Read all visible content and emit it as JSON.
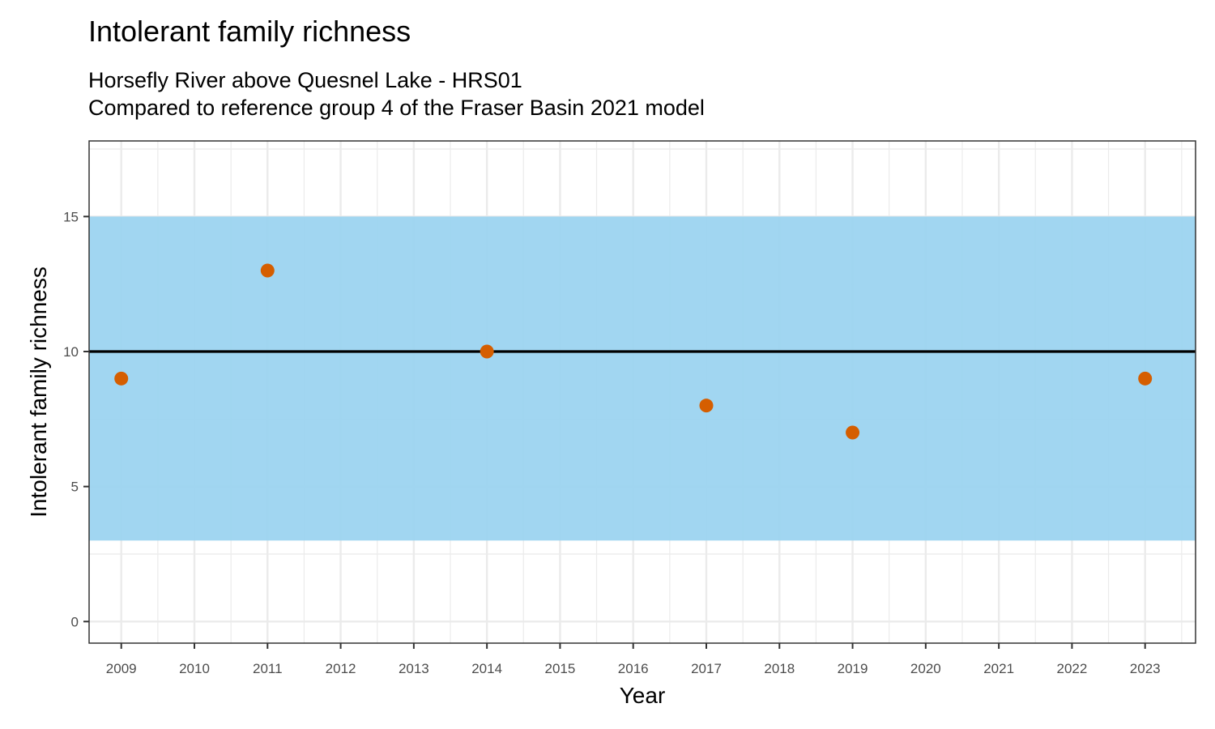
{
  "chart_data": {
    "type": "scatter",
    "title": "Intolerant family richness",
    "subtitle": [
      "Horsefly River above Quesnel Lake - HRS01",
      "Compared to reference group 4 of the Fraser Basin 2021 model"
    ],
    "xlabel": "Year",
    "ylabel": "Intolerant family richness",
    "x_ticks": [
      2009,
      2010,
      2011,
      2012,
      2013,
      2014,
      2015,
      2016,
      2017,
      2018,
      2019,
      2020,
      2021,
      2022,
      2023
    ],
    "y_ticks": [
      0,
      5,
      10,
      15
    ],
    "xlim": [
      2008.56,
      2023.69
    ],
    "ylim": [
      -0.8,
      17.8
    ],
    "reference_band": {
      "lower": 3,
      "upper": 15,
      "color": "#9AD3F0"
    },
    "reference_line": {
      "value": 10,
      "color": "#000000"
    },
    "points": [
      {
        "x": 2009,
        "y": 9
      },
      {
        "x": 2011,
        "y": 13
      },
      {
        "x": 2014,
        "y": 10
      },
      {
        "x": 2017,
        "y": 8
      },
      {
        "x": 2019,
        "y": 7
      },
      {
        "x": 2023,
        "y": 9
      }
    ],
    "point_color": "#D55E00",
    "grid": true,
    "theme": "bw"
  }
}
